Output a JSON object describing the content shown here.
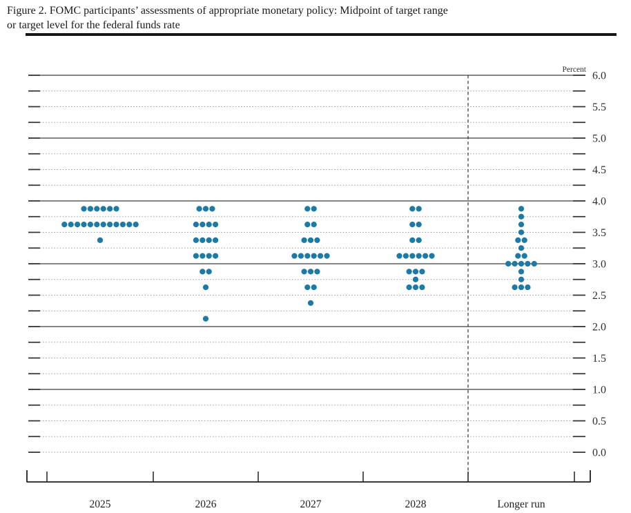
{
  "figure": {
    "title_line1": "Figure 2. FOMC participants’ assessments of appropriate monetary policy: Midpoint of target range",
    "title_line2": "or target level for the federal funds rate"
  },
  "chart_data": {
    "type": "scatter",
    "subtype": "fomc-dot-plot",
    "title": "FOMC participants’ assessments of appropriate monetary policy: Midpoint of target range or target level for the federal funds rate",
    "unit_label": "Percent",
    "categories": [
      "2025",
      "2026",
      "2027",
      "2028",
      "Longer run"
    ],
    "y_axis": {
      "min": 0.0,
      "max": 6.0,
      "tick_step": 0.25,
      "label_step": 0.5,
      "labels": [
        {
          "value": 6.0,
          "text": "6.0"
        },
        {
          "value": 5.5,
          "text": "5.5"
        },
        {
          "value": 5.0,
          "text": "5.0"
        },
        {
          "value": 4.5,
          "text": "4.5"
        },
        {
          "value": 4.0,
          "text": "4.0"
        },
        {
          "value": 3.5,
          "text": "3.5"
        },
        {
          "value": 3.0,
          "text": "3.0"
        },
        {
          "value": 2.5,
          "text": "2.5"
        },
        {
          "value": 2.0,
          "text": "2.0"
        },
        {
          "value": 1.5,
          "text": "1.5"
        },
        {
          "value": 1.0,
          "text": "1.0"
        },
        {
          "value": 0.5,
          "text": "0.5"
        },
        {
          "value": 0.0,
          "text": "0.0"
        }
      ],
      "solid_gridlines": [
        6.0,
        5.0,
        4.0,
        3.0,
        2.0,
        1.0
      ],
      "grid": "dotted lines every 0.25, solid lines at listed values"
    },
    "dot_color": "#1d7aa5",
    "legend_position": "none",
    "series": [
      {
        "category": "2025",
        "dots": [
          {
            "rate": 3.875,
            "count": 6
          },
          {
            "rate": 3.625,
            "count": 12
          },
          {
            "rate": 3.375,
            "count": 1
          }
        ]
      },
      {
        "category": "2026",
        "dots": [
          {
            "rate": 3.875,
            "count": 3
          },
          {
            "rate": 3.625,
            "count": 4
          },
          {
            "rate": 3.375,
            "count": 4
          },
          {
            "rate": 3.125,
            "count": 4
          },
          {
            "rate": 2.875,
            "count": 2
          },
          {
            "rate": 2.625,
            "count": 1
          },
          {
            "rate": 2.125,
            "count": 1
          }
        ]
      },
      {
        "category": "2027",
        "dots": [
          {
            "rate": 3.875,
            "count": 2
          },
          {
            "rate": 3.625,
            "count": 2
          },
          {
            "rate": 3.375,
            "count": 3
          },
          {
            "rate": 3.125,
            "count": 6
          },
          {
            "rate": 2.875,
            "count": 3
          },
          {
            "rate": 2.625,
            "count": 2
          },
          {
            "rate": 2.375,
            "count": 1
          }
        ]
      },
      {
        "category": "2028",
        "dots": [
          {
            "rate": 3.875,
            "count": 2
          },
          {
            "rate": 3.625,
            "count": 2
          },
          {
            "rate": 3.375,
            "count": 2
          },
          {
            "rate": 3.125,
            "count": 6
          },
          {
            "rate": 2.875,
            "count": 3
          },
          {
            "rate": 2.75,
            "count": 1
          },
          {
            "rate": 2.625,
            "count": 3
          }
        ]
      },
      {
        "category": "Longer run",
        "dots": [
          {
            "rate": 3.875,
            "count": 1
          },
          {
            "rate": 3.75,
            "count": 1
          },
          {
            "rate": 3.625,
            "count": 1
          },
          {
            "rate": 3.5,
            "count": 1
          },
          {
            "rate": 3.375,
            "count": 2
          },
          {
            "rate": 3.25,
            "count": 1
          },
          {
            "rate": 3.125,
            "count": 2
          },
          {
            "rate": 3.0,
            "count": 5
          },
          {
            "rate": 2.875,
            "count": 1
          },
          {
            "rate": 2.75,
            "count": 1
          },
          {
            "rate": 2.625,
            "count": 3
          }
        ]
      }
    ]
  }
}
